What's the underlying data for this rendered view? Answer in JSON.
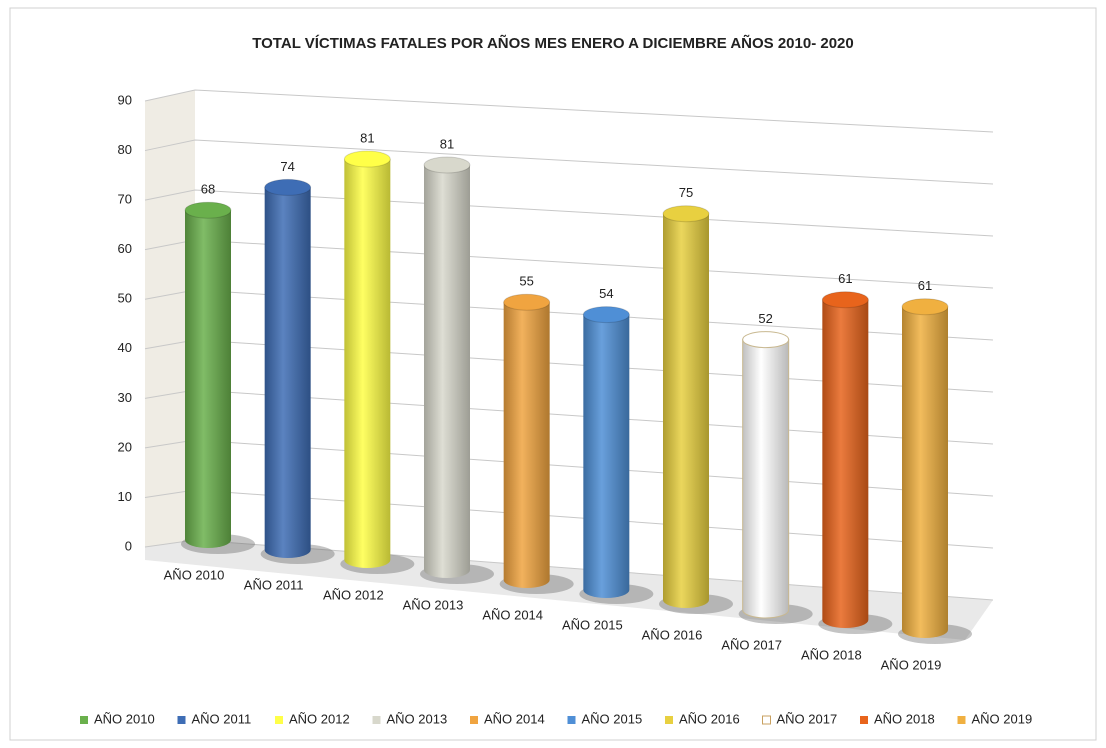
{
  "chart_data": {
    "type": "bar",
    "title": "TOTAL VÍCTIMAS FATALES  POR AÑOS MES ENERO A DICIEMBRE AÑOS 2010- 2020",
    "categories": [
      "AÑO 2010",
      "AÑO 2011",
      "AÑO 2012",
      "AÑO 2013",
      "AÑO 2014",
      "AÑO 2015",
      "AÑO 2016",
      "AÑO 2017",
      "AÑO 2018",
      "AÑO 2019"
    ],
    "values": [
      68,
      74,
      81,
      81,
      55,
      54,
      75,
      52,
      61,
      61
    ],
    "colors": [
      "#6ab04c",
      "#3e6db5",
      "#ffff48",
      "#d8d8cc",
      "#f0a440",
      "#4f8fd6",
      "#e8d040",
      "#ffffff",
      "#e8641c",
      "#f0b040"
    ],
    "ylim": [
      0,
      90
    ],
    "yticks": [
      0,
      10,
      20,
      30,
      40,
      50,
      60,
      70,
      80,
      90
    ],
    "grid": true,
    "legend": "bottom"
  }
}
